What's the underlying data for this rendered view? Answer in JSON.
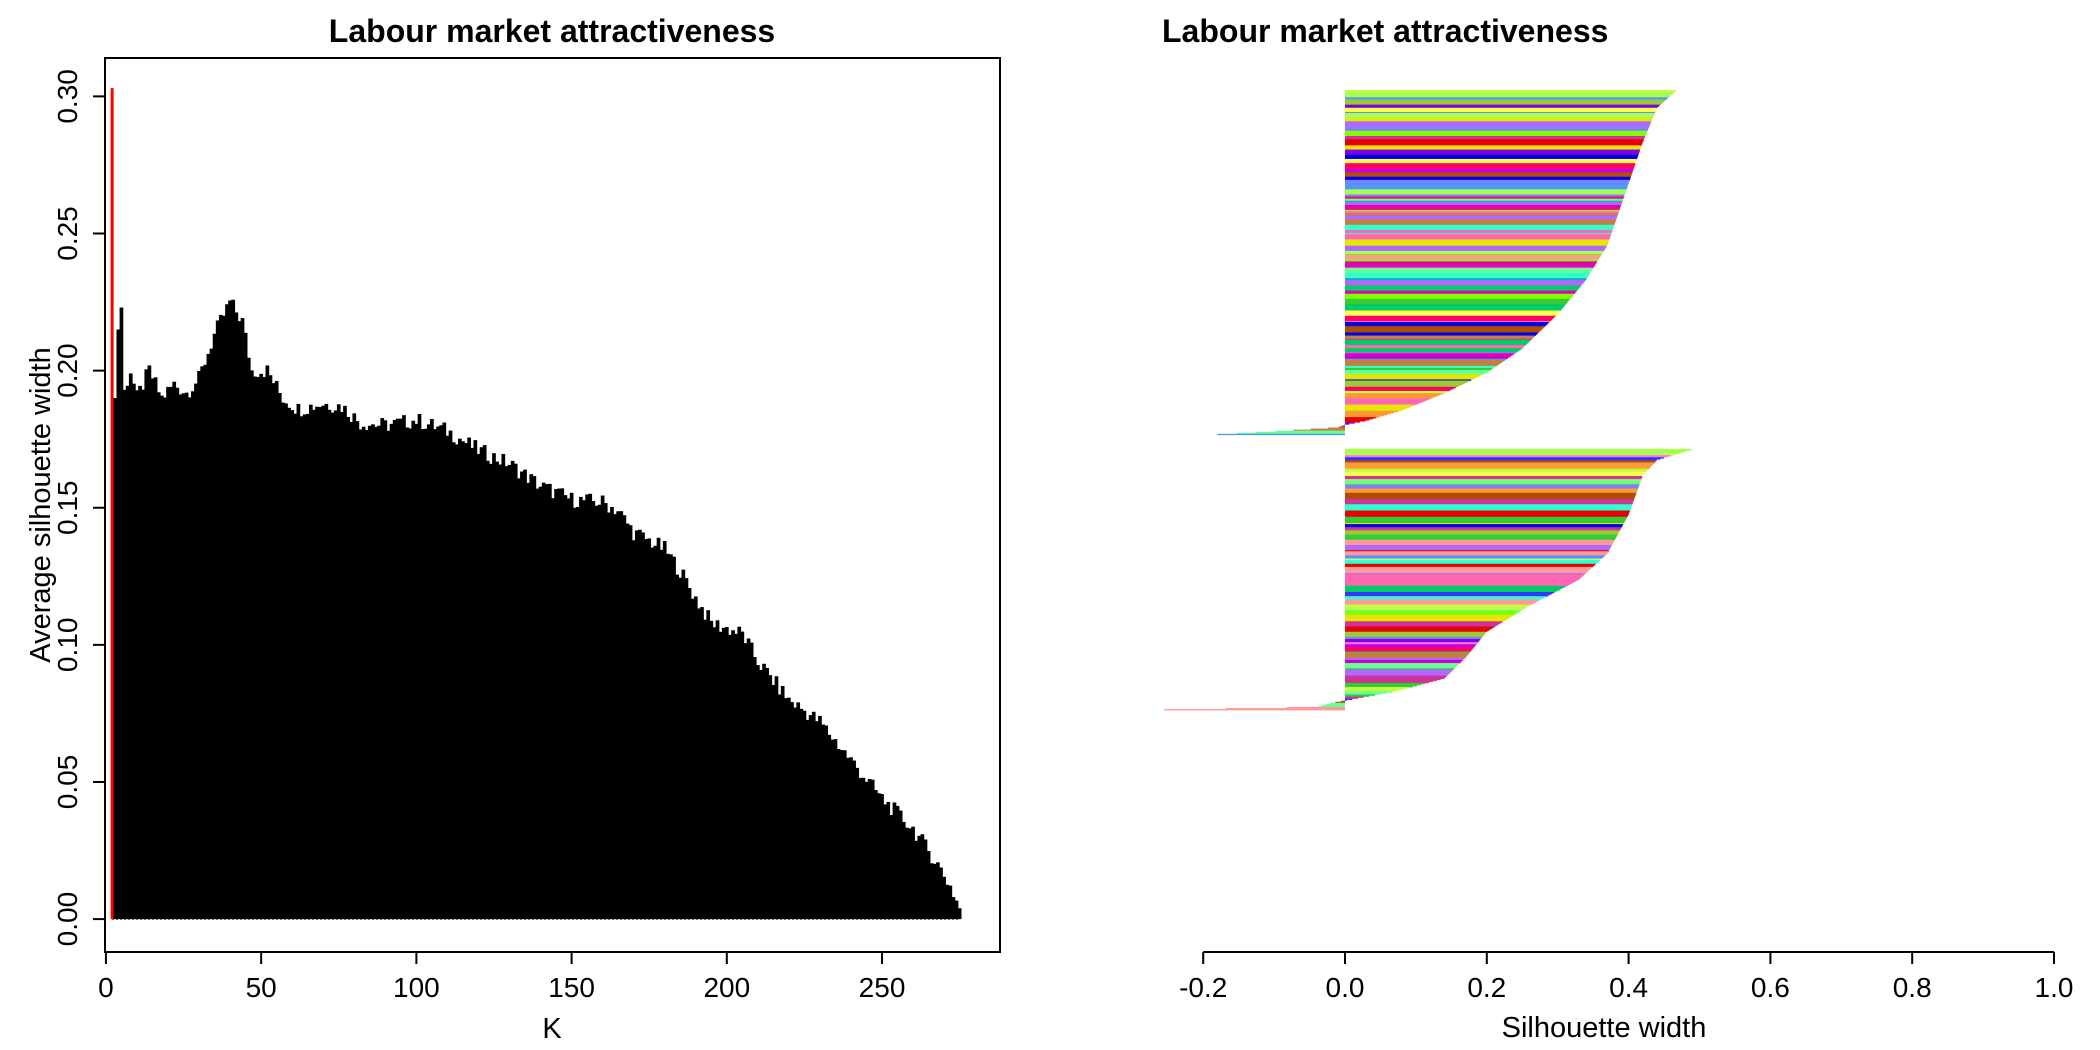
{
  "chart_data": [
    {
      "type": "bar",
      "title": "Labour market attractiveness",
      "xlabel": "K",
      "ylabel": "Average silhouette width",
      "xlim": [
        -0.3,
        288
      ],
      "ylim": [
        -0.012,
        0.314
      ],
      "xticks": [
        "0",
        "50",
        "100",
        "150",
        "200",
        "250"
      ],
      "yticks": [
        "0.00",
        "0.05",
        "0.10",
        "0.15",
        "0.20",
        "0.25",
        "0.30"
      ],
      "highlight": {
        "k": 2,
        "value": 0.303,
        "color": "#ff0000"
      },
      "k_range": [
        2,
        275
      ],
      "grid": false,
      "legend": "none",
      "bar_color": "#000000",
      "profile_points": [
        [
          2,
          0.303
        ],
        [
          3,
          0.19
        ],
        [
          4,
          0.215
        ],
        [
          5,
          0.223
        ],
        [
          6,
          0.193
        ],
        [
          8,
          0.2
        ],
        [
          10,
          0.19
        ],
        [
          14,
          0.2
        ],
        [
          18,
          0.19
        ],
        [
          22,
          0.195
        ],
        [
          26,
          0.192
        ],
        [
          30,
          0.197
        ],
        [
          35,
          0.213
        ],
        [
          40,
          0.225
        ],
        [
          44,
          0.218
        ],
        [
          47,
          0.2
        ],
        [
          52,
          0.2
        ],
        [
          57,
          0.19
        ],
        [
          62,
          0.186
        ],
        [
          70,
          0.188
        ],
        [
          76,
          0.187
        ],
        [
          82,
          0.181
        ],
        [
          90,
          0.18
        ],
        [
          100,
          0.182
        ],
        [
          110,
          0.178
        ],
        [
          120,
          0.171
        ],
        [
          130,
          0.166
        ],
        [
          140,
          0.158
        ],
        [
          150,
          0.153
        ],
        [
          160,
          0.152
        ],
        [
          165,
          0.149
        ],
        [
          170,
          0.141
        ],
        [
          180,
          0.135
        ],
        [
          185,
          0.127
        ],
        [
          190,
          0.117
        ],
        [
          195,
          0.108
        ],
        [
          205,
          0.104
        ],
        [
          210,
          0.094
        ],
        [
          220,
          0.08
        ],
        [
          230,
          0.072
        ],
        [
          240,
          0.058
        ],
        [
          250,
          0.044
        ],
        [
          260,
          0.033
        ],
        [
          268,
          0.02
        ],
        [
          272,
          0.012
        ],
        [
          275,
          0.004
        ]
      ]
    },
    {
      "type": "bar",
      "orientation": "horizontal",
      "title": "Labour market attractiveness",
      "xlabel": "Silhouette width",
      "xlim": [
        -0.26,
        1.0
      ],
      "xticks": [
        "-0.2",
        "0.0",
        "0.2",
        "0.4",
        "0.6",
        "0.8",
        "1.0"
      ],
      "grid": false,
      "legend": "none",
      "n_observations": 580,
      "clusters": [
        {
          "n": 330,
          "width_profile": [
            [
              0,
              0.467
            ],
            [
              0.05,
              0.44
            ],
            [
              0.15,
              0.42
            ],
            [
              0.3,
              0.395
            ],
            [
              0.45,
              0.37
            ],
            [
              0.55,
              0.34
            ],
            [
              0.65,
              0.3
            ],
            [
              0.75,
              0.25
            ],
            [
              0.82,
              0.2
            ],
            [
              0.88,
              0.14
            ],
            [
              0.93,
              0.08
            ],
            [
              0.96,
              0.03
            ],
            [
              0.972,
              0.0
            ],
            [
              0.98,
              -0.01
            ],
            [
              0.99,
              -0.09
            ],
            [
              1.0,
              -0.18
            ]
          ]
        },
        {
          "n": 250,
          "width_profile": [
            [
              0,
              0.49
            ],
            [
              0.04,
              0.44
            ],
            [
              0.1,
              0.42
            ],
            [
              0.25,
              0.4
            ],
            [
              0.4,
              0.37
            ],
            [
              0.5,
              0.33
            ],
            [
              0.6,
              0.26
            ],
            [
              0.7,
              0.2
            ],
            [
              0.8,
              0.17
            ],
            [
              0.88,
              0.14
            ],
            [
              0.93,
              0.07
            ],
            [
              0.96,
              0.01
            ],
            [
              0.975,
              -0.02
            ],
            [
              0.99,
              -0.04
            ],
            [
              1.0,
              -0.255
            ]
          ]
        }
      ],
      "palette": [
        "#e600b4",
        "#ff73e6",
        "#ff9999",
        "#e6e600",
        "#ffff4d",
        "#c0ff40",
        "#80ff00",
        "#33cc33",
        "#00cc66",
        "#c08040",
        "#ff9933",
        "#b34d00",
        "#cc3399",
        "#99cc33",
        "#66ff99",
        "#4d94ff",
        "#0000e6",
        "#3333ff",
        "#7a00e6",
        "#cc00cc",
        "#ff0066",
        "#e60000",
        "#33ffcc",
        "#7f7fff",
        "#b366ff",
        "#00b3b3",
        "#ff66b3",
        "#a6ff4d"
      ]
    }
  ]
}
